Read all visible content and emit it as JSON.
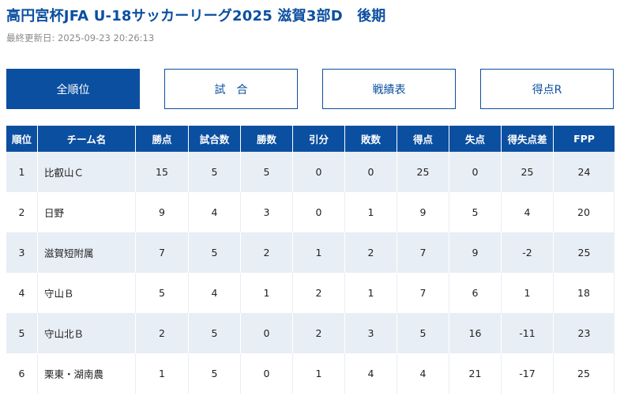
{
  "header": {
    "title": "高円宮杯JFA U-18サッカーリーグ2025 滋賀3部D　後期",
    "updated": "最終更新日: 2025-09-23 20:26:13"
  },
  "tabs": [
    {
      "label": "全順位",
      "active": true
    },
    {
      "label": "試　合",
      "active": false
    },
    {
      "label": "戦績表",
      "active": false
    },
    {
      "label": "得点R",
      "active": false
    }
  ],
  "table": {
    "columns": [
      "順位",
      "チーム名",
      "勝点",
      "試合数",
      "勝数",
      "引分",
      "敗数",
      "得点",
      "失点",
      "得失点差",
      "FPP"
    ],
    "rows": [
      {
        "rank": "1",
        "team": "比叡山Ｃ",
        "points": "15",
        "played": "5",
        "wins": "5",
        "draws": "0",
        "losses": "0",
        "gf": "25",
        "ga": "0",
        "gd": "25",
        "fpp": "24"
      },
      {
        "rank": "2",
        "team": "日野",
        "points": "9",
        "played": "4",
        "wins": "3",
        "draws": "0",
        "losses": "1",
        "gf": "9",
        "ga": "5",
        "gd": "4",
        "fpp": "20"
      },
      {
        "rank": "3",
        "team": "滋賀短附属",
        "points": "7",
        "played": "5",
        "wins": "2",
        "draws": "1",
        "losses": "2",
        "gf": "7",
        "ga": "9",
        "gd": "-2",
        "fpp": "25"
      },
      {
        "rank": "4",
        "team": "守山Ｂ",
        "points": "5",
        "played": "4",
        "wins": "1",
        "draws": "2",
        "losses": "1",
        "gf": "7",
        "ga": "6",
        "gd": "1",
        "fpp": "18"
      },
      {
        "rank": "5",
        "team": "守山北Ｂ",
        "points": "2",
        "played": "5",
        "wins": "0",
        "draws": "2",
        "losses": "3",
        "gf": "5",
        "ga": "16",
        "gd": "-11",
        "fpp": "23"
      },
      {
        "rank": "6",
        "team": "栗東・湖南農",
        "points": "1",
        "played": "5",
        "wins": "0",
        "draws": "1",
        "losses": "4",
        "gf": "4",
        "ga": "21",
        "gd": "-17",
        "fpp": "25"
      }
    ]
  }
}
